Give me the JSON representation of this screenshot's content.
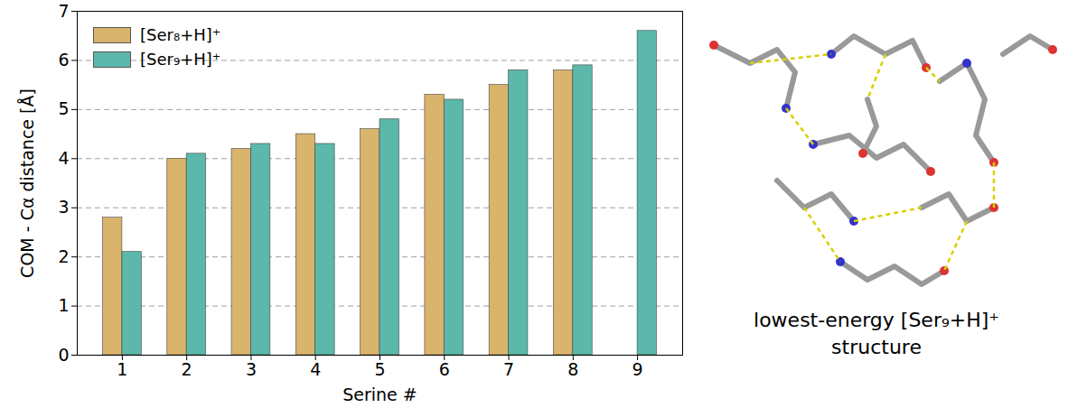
{
  "chart_data": {
    "type": "bar",
    "categories": [
      "1",
      "2",
      "3",
      "4",
      "5",
      "6",
      "7",
      "8",
      "9"
    ],
    "series": [
      {
        "name": "[Ser₈+H]⁺",
        "color": "#d9b46c",
        "values": [
          2.8,
          4.0,
          4.2,
          4.5,
          4.6,
          5.3,
          5.5,
          5.8,
          null
        ]
      },
      {
        "name": "[Ser₉+H]⁺",
        "color": "#5bb8aa",
        "values": [
          2.1,
          4.1,
          4.3,
          4.3,
          4.8,
          5.2,
          5.8,
          5.9,
          6.6
        ]
      }
    ],
    "xlabel": "Serine #",
    "ylabel": "COM - Cα distance [Å]",
    "ylim": [
      0,
      7
    ],
    "yticks": [
      0,
      1,
      2,
      3,
      4,
      5,
      6,
      7
    ],
    "grid": true,
    "legend": "upper left"
  },
  "image": {
    "caption": "lowest-energy [Ser₉+H]⁺ structure"
  }
}
